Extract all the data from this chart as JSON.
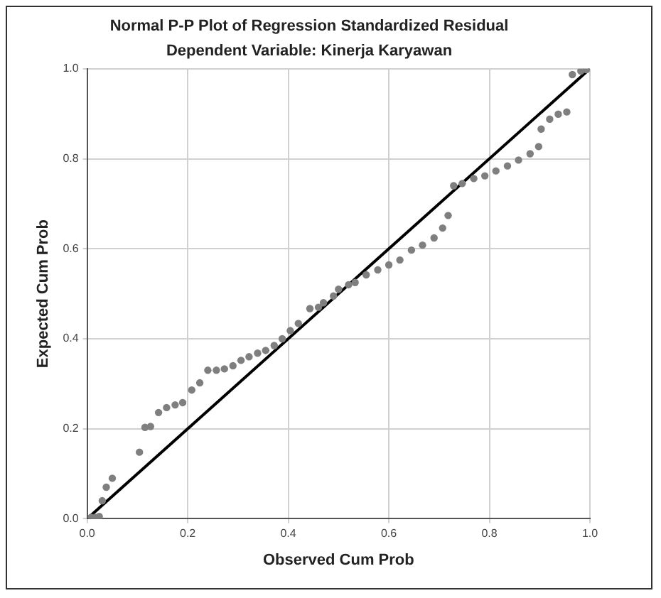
{
  "chart_data": {
    "type": "scatter",
    "title": "Normal P-P Plot of Regression Standardized Residual",
    "subtitle": "Dependent Variable: Kinerja Karyawan",
    "xlabel": "Observed Cum Prob",
    "ylabel": "Expected Cum Prob",
    "xlim": [
      0,
      1
    ],
    "ylim": [
      0,
      1
    ],
    "xticks": [
      {
        "value": 0,
        "label": "0.0"
      },
      {
        "value": 0.2,
        "label": "0.2"
      },
      {
        "value": 0.4,
        "label": "0.4"
      },
      {
        "value": 0.6,
        "label": "0.6"
      },
      {
        "value": 0.8,
        "label": "0.8"
      },
      {
        "value": 1,
        "label": "1.0"
      }
    ],
    "yticks": [
      {
        "value": 0,
        "label": "0.0"
      },
      {
        "value": 0.2,
        "label": "0.2"
      },
      {
        "value": 0.4,
        "label": "0.4"
      },
      {
        "value": 0.6,
        "label": "0.6"
      },
      {
        "value": 0.8,
        "label": "0.8"
      },
      {
        "value": 1,
        "label": "1.0"
      }
    ],
    "grid": true,
    "legend": false,
    "marker": "circle",
    "series": [
      {
        "type": "scatter",
        "color": "#7f7f7f",
        "x": [
          0.008,
          0.016,
          0.024,
          0.03,
          0.038,
          0.05,
          0.104,
          0.115,
          0.126,
          0.142,
          0.158,
          0.175,
          0.19,
          0.208,
          0.224,
          0.24,
          0.257,
          0.273,
          0.29,
          0.306,
          0.322,
          0.339,
          0.355,
          0.372,
          0.388,
          0.404,
          0.42,
          0.443,
          0.46,
          0.47,
          0.49,
          0.5,
          0.52,
          0.533,
          0.555,
          0.578,
          0.6,
          0.622,
          0.645,
          0.667,
          0.69,
          0.707,
          0.718,
          0.729,
          0.746,
          0.769,
          0.791,
          0.813,
          0.836,
          0.858,
          0.881,
          0.898,
          0.903,
          0.92,
          0.937,
          0.954,
          0.965,
          0.982,
          0.993
        ],
        "values": [
          0.003,
          0.003,
          0.005,
          0.04,
          0.07,
          0.09,
          0.148,
          0.203,
          0.205,
          0.236,
          0.247,
          0.253,
          0.258,
          0.286,
          0.302,
          0.33,
          0.33,
          0.333,
          0.34,
          0.352,
          0.36,
          0.368,
          0.374,
          0.385,
          0.4,
          0.418,
          0.434,
          0.467,
          0.47,
          0.48,
          0.495,
          0.51,
          0.52,
          0.525,
          0.542,
          0.553,
          0.564,
          0.575,
          0.597,
          0.608,
          0.624,
          0.646,
          0.674,
          0.74,
          0.745,
          0.756,
          0.762,
          0.773,
          0.784,
          0.797,
          0.811,
          0.827,
          0.866,
          0.888,
          0.899,
          0.904,
          0.987,
          0.995,
          0.998
        ]
      },
      {
        "type": "line",
        "color": "#000000",
        "x": [
          0,
          1
        ],
        "values": [
          0,
          1
        ],
        "marker": "none",
        "line_style": "solid"
      }
    ]
  }
}
